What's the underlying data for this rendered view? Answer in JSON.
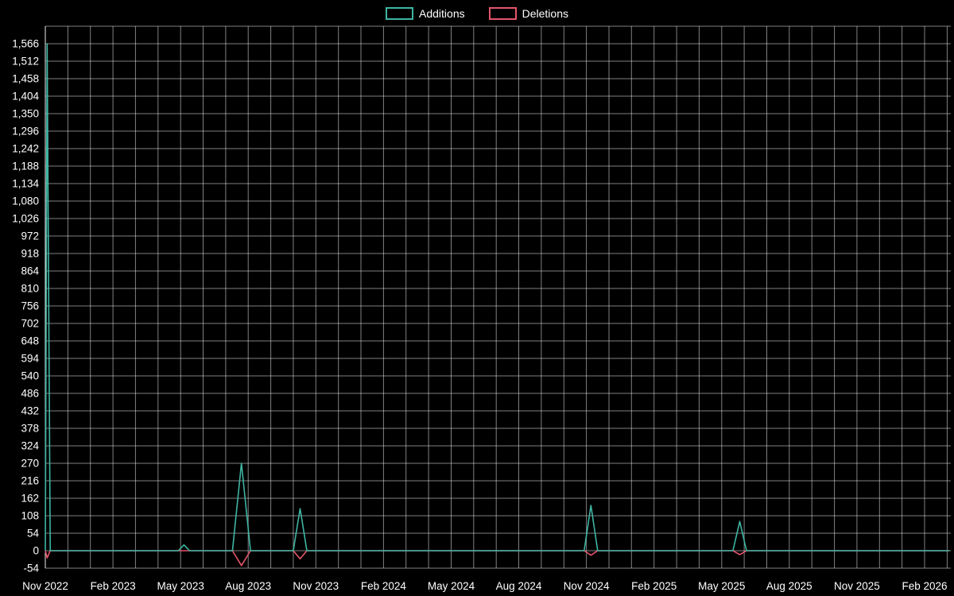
{
  "legend": {
    "items": [
      {
        "label": "Additions",
        "color": "#3fb5a3"
      },
      {
        "label": "Deletions",
        "color": "#e4556a"
      }
    ]
  },
  "chart_data": {
    "type": "line",
    "title": "",
    "xlabel": "",
    "ylabel": "",
    "x_axis": {
      "tick_labels": [
        "Nov 2022",
        "Feb 2023",
        "May 2023",
        "Aug 2023",
        "Nov 2023",
        "Feb 2024",
        "May 2024",
        "Aug 2024",
        "Nov 2024",
        "Feb 2025",
        "May 2025",
        "Aug 2025",
        "Nov 2025",
        "Feb 2026"
      ],
      "months_per_tick": 3,
      "total_months": 39
    },
    "y_axis": {
      "ticks": [
        -54,
        0,
        54,
        108,
        162,
        216,
        270,
        324,
        378,
        432,
        486,
        540,
        594,
        648,
        702,
        756,
        810,
        864,
        918,
        972,
        1026,
        1080,
        1134,
        1188,
        1242,
        1296,
        1350,
        1404,
        1458,
        1512,
        1566
      ],
      "min": -54,
      "max": 1620
    },
    "grid": {
      "horizontal_step": 54,
      "vertical": "monthly",
      "color": "rgba(255,255,255,0.5)"
    },
    "series": [
      {
        "name": "Additions",
        "color": "#3fb5a3",
        "points": [
          [
            0,
            0
          ],
          [
            0.08,
            1566
          ],
          [
            0.22,
            0
          ],
          [
            5.9,
            0
          ],
          [
            6.15,
            18
          ],
          [
            6.4,
            0
          ],
          [
            8.3,
            0
          ],
          [
            8.7,
            270
          ],
          [
            9.1,
            0
          ],
          [
            11.0,
            0
          ],
          [
            11.3,
            130
          ],
          [
            11.6,
            0
          ],
          [
            23.9,
            0
          ],
          [
            24.2,
            140
          ],
          [
            24.5,
            0
          ],
          [
            30.5,
            0
          ],
          [
            30.8,
            90
          ],
          [
            31.1,
            0
          ],
          [
            40.1,
            0
          ]
        ]
      },
      {
        "name": "Deletions",
        "color": "#e4556a",
        "points": [
          [
            0,
            0
          ],
          [
            0.08,
            -22
          ],
          [
            0.22,
            0
          ],
          [
            8.3,
            0
          ],
          [
            8.7,
            -46
          ],
          [
            9.1,
            0
          ],
          [
            11.0,
            0
          ],
          [
            11.3,
            -25
          ],
          [
            11.6,
            0
          ],
          [
            23.9,
            0
          ],
          [
            24.2,
            -14
          ],
          [
            24.5,
            0
          ],
          [
            30.5,
            0
          ],
          [
            30.8,
            -12
          ],
          [
            31.1,
            0
          ],
          [
            40.1,
            0
          ]
        ]
      }
    ]
  }
}
